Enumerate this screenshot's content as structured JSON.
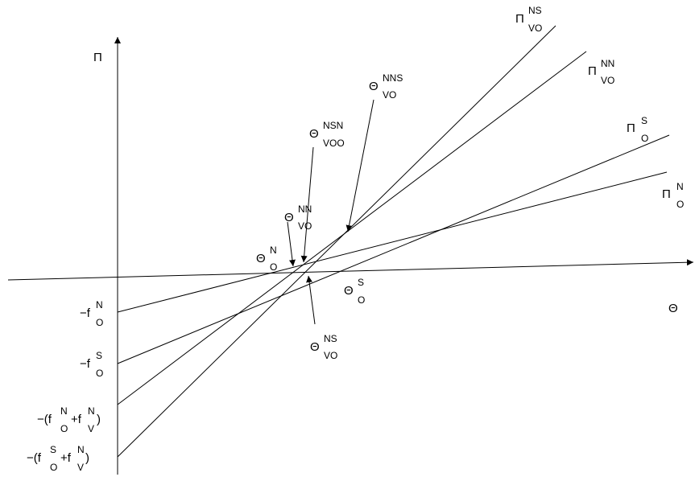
{
  "axes": {
    "y_label": "Π",
    "x_label": "Θ"
  },
  "line_labels": {
    "pi_vo_ns": {
      "base": "Π",
      "sup": "NS",
      "sub": "VO"
    },
    "pi_vo_nn": {
      "base": "Π",
      "sup": "NN",
      "sub": "VO"
    },
    "pi_o_s": {
      "base": "Π",
      "sup": "S",
      "sub": "O"
    },
    "pi_o_n": {
      "base": "Π",
      "sup": "N",
      "sub": "O"
    }
  },
  "point_labels": {
    "theta_vo_nns": {
      "base": "Θ",
      "sup": "NNS",
      "sub": "VO"
    },
    "theta_voo_nsn": {
      "base": "Θ",
      "sup": "NSN",
      "sub": "VOO"
    },
    "theta_vo_nn": {
      "base": "Θ",
      "sup": "NN",
      "sub": "VO"
    },
    "theta_o_n": {
      "base": "Θ",
      "sup": "N",
      "sub": "O"
    },
    "theta_o_s": {
      "base": "Θ",
      "sup": "S",
      "sub": "O"
    },
    "theta_vo_ns": {
      "base": "Θ",
      "sup": "NS",
      "sub": "VO"
    }
  },
  "intercept_labels": {
    "neg_fo_n": {
      "prefix": "−f",
      "sup": "N",
      "sub": "O"
    },
    "neg_fo_s": {
      "prefix": "−f",
      "sup": "S",
      "sub": "O"
    },
    "neg_fo_n_plus_fv_n": {
      "prefix": "−(f",
      "sup1": "N",
      "sub1": "O",
      "mid": "+f",
      "sup2": "N",
      "sub2": "V",
      "suffix": ")"
    },
    "neg_fo_s_plus_fv_n": {
      "prefix": "−(f",
      "sup1": "S",
      "sub1": "O",
      "mid": "+f",
      "sup2": "N",
      "sub2": "V",
      "suffix": ")"
    }
  }
}
